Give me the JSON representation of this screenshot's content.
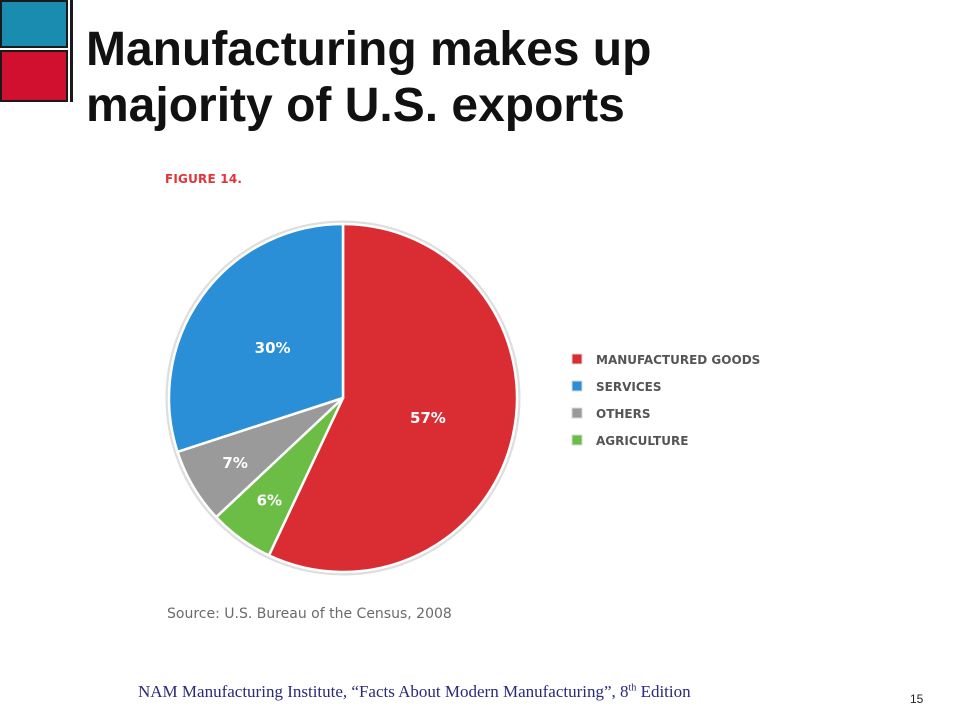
{
  "slide": {
    "title_line1": "Manufacturing makes up",
    "title_line2": "majority of U.S. exports",
    "citation_pre": "NAM Manufacturing Institute, “Facts About Modern Manufacturing”, 8",
    "citation_sup": "th",
    "citation_post": " Edition",
    "page_number": "15"
  },
  "chart_data": {
    "type": "pie",
    "figure_label": "FIGURE 14.",
    "source": "Source: U.S. Bureau of the Census, 2008",
    "legend_position": "right",
    "slices": [
      {
        "label": "MANUFACTURED GOODS",
        "value": 57,
        "value_label": "57%",
        "color": "#d92d33"
      },
      {
        "label": "AGRICULTURE",
        "value": 6,
        "value_label": "6%",
        "color": "#6cbd45"
      },
      {
        "label": "OTHERS",
        "value": 7,
        "value_label": "7%",
        "color": "#9a9a9a"
      },
      {
        "label": "SERVICES",
        "value": 30,
        "value_label": "30%",
        "color": "#2a8fd6"
      }
    ],
    "legend_order": [
      "MANUFACTURED GOODS",
      "SERVICES",
      "OTHERS",
      "AGRICULTURE"
    ]
  },
  "colors": {
    "deco_blue": "#1a8cb0",
    "deco_red": "#d0102e",
    "figure_label": "#e0343a",
    "citation": "#2a2a7a"
  }
}
